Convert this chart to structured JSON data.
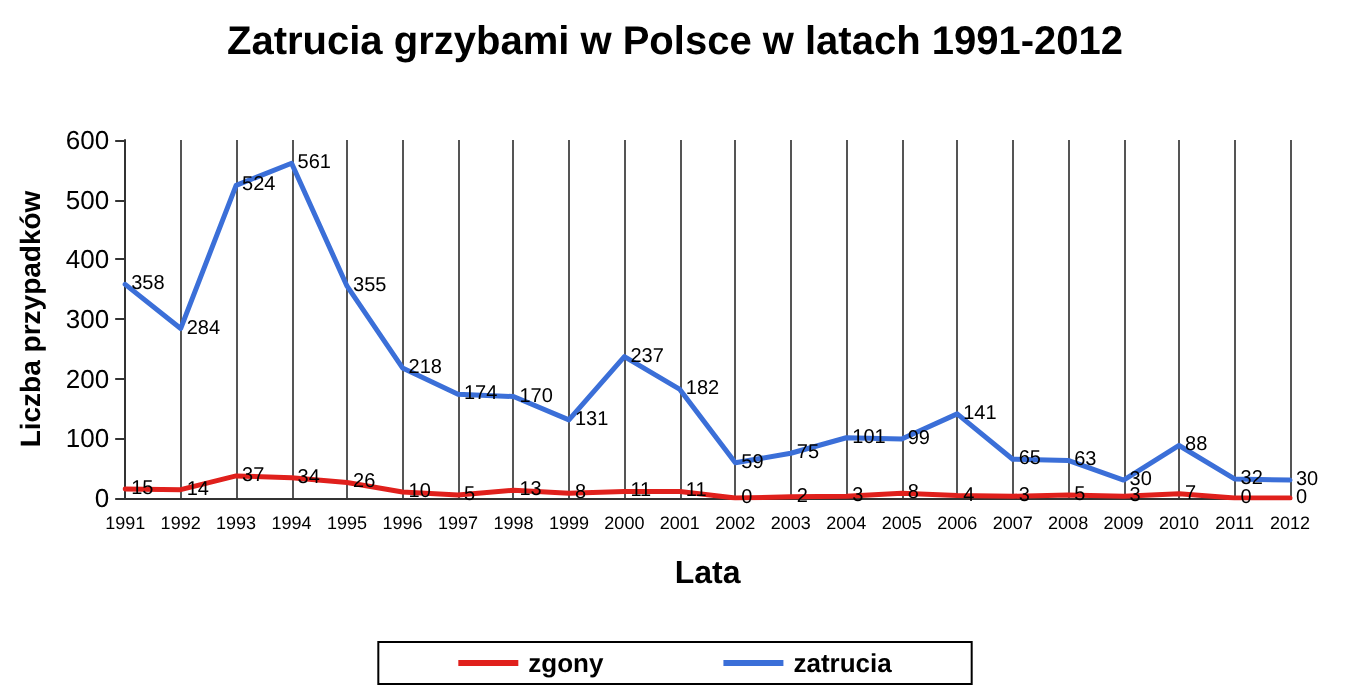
{
  "chart_data": {
    "type": "line",
    "title": "Zatrucia grzybami w Polsce w latach 1991-2012",
    "xlabel": "Lata",
    "ylabel": "Liczba przypadków",
    "categories": [
      "1991",
      "1992",
      "1993",
      "1994",
      "1995",
      "1996",
      "1997",
      "1998",
      "1999",
      "2000",
      "2001",
      "2002",
      "2003",
      "2004",
      "2005",
      "2006",
      "2007",
      "2008",
      "2009",
      "2010",
      "2011",
      "2012"
    ],
    "series": [
      {
        "name": "zgony",
        "color": "#e0201c",
        "values": [
          15,
          14,
          37,
          34,
          26,
          10,
          5,
          13,
          8,
          11,
          11,
          0,
          2,
          3,
          8,
          4,
          3,
          5,
          3,
          7,
          0,
          0
        ]
      },
      {
        "name": "zatrucia",
        "color": "#3b6fd8",
        "values": [
          358,
          284,
          524,
          561,
          355,
          218,
          174,
          170,
          131,
          237,
          182,
          59,
          75,
          101,
          99,
          141,
          65,
          63,
          30,
          88,
          32,
          30
        ]
      }
    ],
    "ylim": [
      0,
      600
    ],
    "yticks": [
      0,
      100,
      200,
      300,
      400,
      500,
      600
    ],
    "grid": "x",
    "legend": "bottom",
    "data_labels": true,
    "marker": "none",
    "line_style": "solid"
  }
}
